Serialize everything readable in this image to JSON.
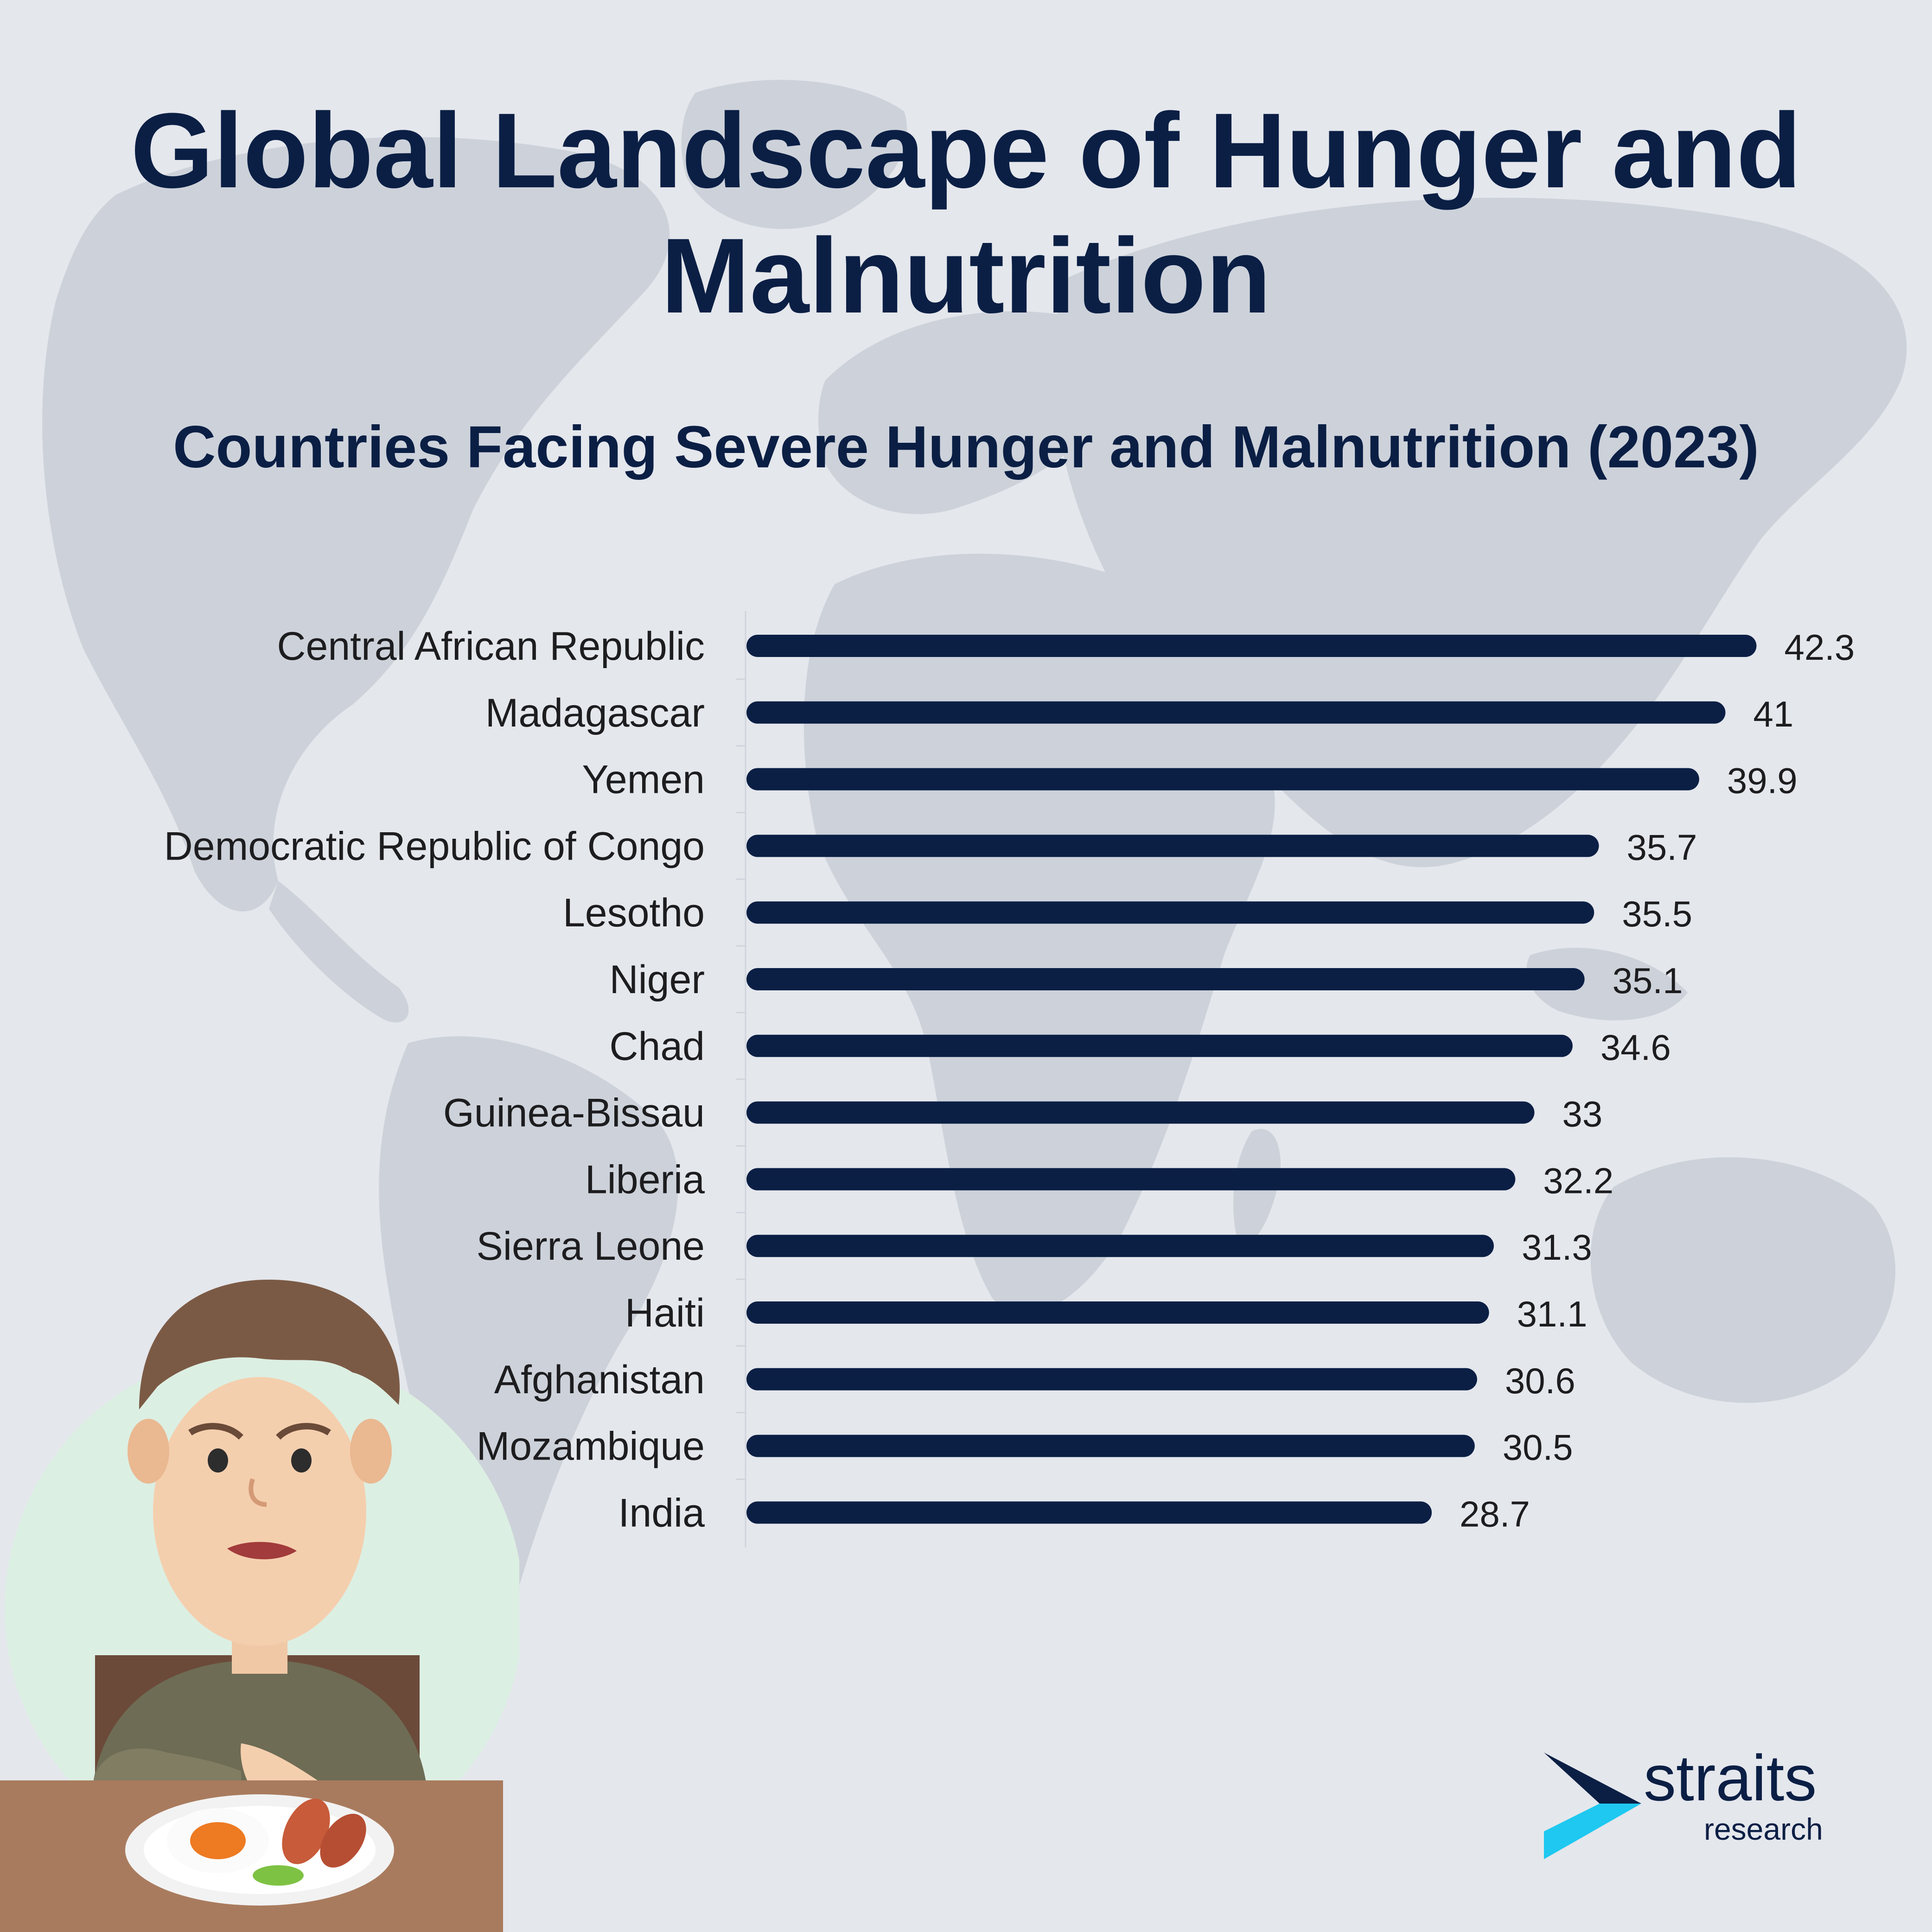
{
  "title": "Global Landscape of Hunger and Malnutrition",
  "subtitle": "Countries Facing Severe Hunger and Malnutrition (2023)",
  "colors": {
    "background": "#e4e7ec",
    "map": "#cdd2da",
    "bar": "#0b1f45",
    "title": "#0b1f45",
    "logo_accent": "#1ec8f0"
  },
  "chart_data": {
    "type": "bar",
    "orientation": "horizontal",
    "categories": [
      "Central African Republic",
      "Madagascar",
      "Yemen",
      "Democratic Republic of Congo",
      "Lesotho",
      "Niger",
      "Chad",
      "Guinea-Bissau",
      "Liberia",
      "Sierra Leone",
      "Haiti",
      "Afghanistan",
      "Mozambique",
      "India"
    ],
    "values": [
      42.3,
      41,
      39.9,
      35.7,
      35.5,
      35.1,
      34.6,
      33,
      32.2,
      31.3,
      31.1,
      30.6,
      30.5,
      28.7
    ],
    "value_labels": [
      "42.3",
      "41",
      "39.9",
      "35.7",
      "35.5",
      "35.1",
      "34.6",
      "33",
      "32.2",
      "31.3",
      "31.1",
      "30.6",
      "30.5",
      "28.7"
    ],
    "xlim": [
      0,
      50
    ],
    "grid": false,
    "legend": "none"
  },
  "logo": {
    "word": "straits",
    "sub": "research"
  },
  "illustration": {
    "icon": "hungry-boy-with-plate-illustration"
  }
}
